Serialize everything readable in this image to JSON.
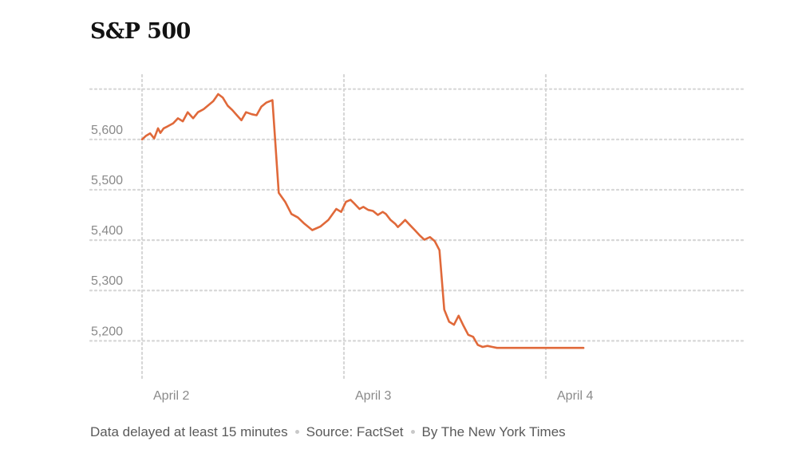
{
  "title": "S&P 500",
  "footer": {
    "delay_note": "Data delayed at least 15 minutes",
    "source": "Source: FactSet",
    "byline": "By The New York Times"
  },
  "colors": {
    "line": "#e0693a",
    "grid": "#d7d7d7",
    "tick_text": "#8a8a8a"
  },
  "chart_data": {
    "type": "line",
    "title": "S&P 500",
    "xlabel": "",
    "ylabel": "",
    "ylim": [
      5123,
      5728
    ],
    "y_ticks": [
      5200,
      5300,
      5400,
      5500,
      5600
    ],
    "y_tick_labels": [
      "5,200",
      "5,300",
      "5,400",
      "5,500",
      "5,600"
    ],
    "x_ticks": [
      "April 2",
      "April 3",
      "April 4"
    ],
    "x_domain": [
      0,
      3
    ],
    "grid": true,
    "legend": "none",
    "series": [
      {
        "x": [
          0.0,
          0.019,
          0.04,
          0.06,
          0.079,
          0.091,
          0.107,
          0.127,
          0.154,
          0.178,
          0.202,
          0.226,
          0.253,
          0.277,
          0.305,
          0.329,
          0.353,
          0.377,
          0.4,
          0.424,
          0.448,
          0.472,
          0.492,
          0.515,
          0.543,
          0.567,
          0.591,
          0.615,
          0.646,
          0.677,
          0.709,
          0.74,
          0.772,
          0.803,
          0.843,
          0.883,
          0.923,
          0.962,
          0.986,
          1.01,
          1.033,
          1.053,
          1.077,
          1.096,
          1.12,
          1.144,
          1.168,
          1.192,
          1.208,
          1.231,
          1.255,
          1.267,
          1.283,
          1.303,
          1.327,
          1.351,
          1.374,
          1.398,
          1.426,
          1.45,
          1.473,
          1.497,
          1.521,
          1.545,
          1.568,
          1.592,
          1.616,
          1.64,
          1.663,
          1.687,
          1.711,
          1.735,
          1.758,
          1.782,
          1.81,
          1.834,
          1.857,
          1.881,
          1.905,
          1.929,
          1.952,
          1.976,
          2.0,
          2.02,
          2.036,
          2.06,
          2.083,
          2.107,
          2.139,
          2.17,
          2.186
        ],
        "values": [
          5600,
          5607,
          5612,
          5602,
          5622,
          5613,
          5622,
          5626,
          5632,
          5642,
          5636,
          5654,
          5642,
          5654,
          5660,
          5668,
          5676,
          5690,
          5683,
          5667,
          5658,
          5647,
          5638,
          5654,
          5650,
          5648,
          5665,
          5673,
          5678,
          5494,
          5476,
          5452,
          5445,
          5433,
          5420,
          5427,
          5440,
          5462,
          5456,
          5476,
          5480,
          5472,
          5462,
          5466,
          5460,
          5458,
          5450,
          5456,
          5452,
          5440,
          5432,
          5426,
          5432,
          5440,
          5430,
          5420,
          5410,
          5401,
          5406,
          5398,
          5380,
          5262,
          5238,
          5232,
          5250,
          5230,
          5212,
          5208,
          5192,
          5188,
          5190,
          5188,
          5186,
          5186,
          5186,
          5186,
          5186,
          5186,
          5186,
          5186,
          5186,
          5186,
          5186,
          5186,
          5186,
          5186,
          5186,
          5186,
          5186,
          5186,
          5186
        ]
      }
    ]
  }
}
